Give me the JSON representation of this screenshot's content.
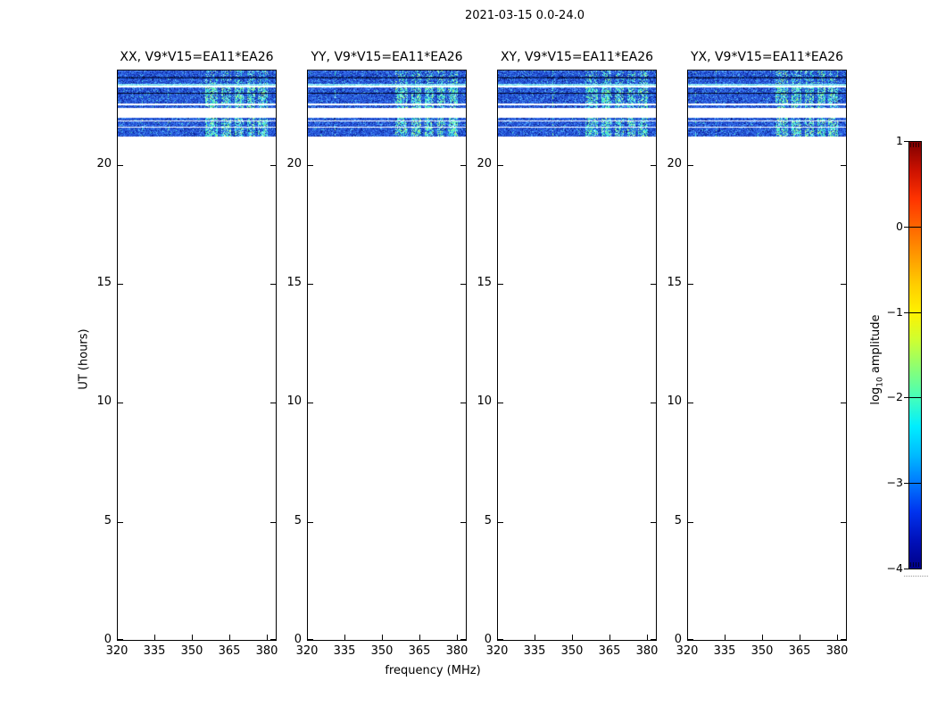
{
  "figure": {
    "title": "2021-03-15 0.0-24.0",
    "xlabel": "frequency (MHz)",
    "ylabel": "UT (hours)"
  },
  "panels": [
    {
      "title": "XX, V9*V15=EA11*EA26"
    },
    {
      "title": "YY, V9*V15=EA11*EA26"
    },
    {
      "title": "XY, V9*V15=EA11*EA26"
    },
    {
      "title": "YX, V9*V15=EA11*EA26"
    }
  ],
  "colorbar": {
    "tick_labels": [
      "1",
      "0",
      "−1",
      "−2",
      "−3",
      "−4"
    ],
    "label_prefix": "log",
    "label_sub": "10",
    "label_suffix": " amplitude",
    "cmap_stops": [
      "#7f0000",
      "#cc1100",
      "#ff3300",
      "#ff6600",
      "#ff9900",
      "#ffcc00",
      "#fff200",
      "#ccff33",
      "#88ff77",
      "#44ffbb",
      "#00eeff",
      "#00bbff",
      "#0077ff",
      "#0033ee",
      "#0011bb",
      "#000088"
    ]
  },
  "chart_data": {
    "type": "heatmap",
    "title": "2021-03-15 0.0-24.0",
    "xlabel": "frequency (MHz)",
    "ylabel": "UT (hours)",
    "panel_titles": [
      "XX, V9*V15=EA11*EA26",
      "YY, V9*V15=EA11*EA26",
      "XY, V9*V15=EA11*EA26",
      "YX, V9*V15=EA11*EA26"
    ],
    "x_ticks": [
      320,
      335,
      350,
      365,
      380
    ],
    "y_ticks": [
      0,
      5,
      10,
      15,
      20
    ],
    "x_range": [
      320,
      383.6
    ],
    "y_range": [
      0,
      24
    ],
    "colorbar": {
      "label": "log10 amplitude",
      "range": [
        -4,
        1
      ],
      "ticks": [
        1,
        0,
        -1,
        -2,
        -3,
        -4
      ],
      "cmap": "jet"
    },
    "data_present_ut_range": [
      21.2,
      24.0
    ],
    "noise_floor_log10": -3,
    "rfi_patch_amplitude_log10": -2,
    "band_rows": [
      {
        "y": 0,
        "h": 7,
        "kind": "noise",
        "patches": 0.45
      },
      {
        "y": 7,
        "h": 2,
        "kind": "dark"
      },
      {
        "y": 9,
        "h": 6,
        "kind": "noise",
        "patches": 0.5
      },
      {
        "y": 15,
        "h": 2,
        "kind": "bright"
      },
      {
        "y": 17,
        "h": 2,
        "kind": "gap"
      },
      {
        "y": 19,
        "h": 10,
        "kind": "noise",
        "patches": 0.95,
        "line": 6
      },
      {
        "y": 29,
        "h": 8,
        "kind": "noise",
        "patches": 0.95
      },
      {
        "y": 37,
        "h": 2,
        "kind": "gap"
      },
      {
        "y": 39,
        "h": 3,
        "kind": "noise",
        "patches": 0.8
      },
      {
        "y": 42,
        "h": 11,
        "kind": "gap"
      },
      {
        "y": 53,
        "h": 3,
        "kind": "noise",
        "patches": 0.65
      },
      {
        "y": 56,
        "h": 1,
        "kind": "gap"
      },
      {
        "y": 57,
        "h": 6,
        "kind": "noise",
        "patches": 0.9
      },
      {
        "y": 63,
        "h": 1,
        "kind": "gap"
      },
      {
        "y": 64,
        "h": 10,
        "kind": "noise",
        "patches": 0.9
      }
    ],
    "rfi_patch_columns": [
      [
        0.55,
        0.63
      ],
      [
        0.655,
        0.715
      ],
      [
        0.735,
        0.795
      ],
      [
        0.815,
        0.865
      ],
      [
        0.885,
        0.945
      ]
    ]
  }
}
